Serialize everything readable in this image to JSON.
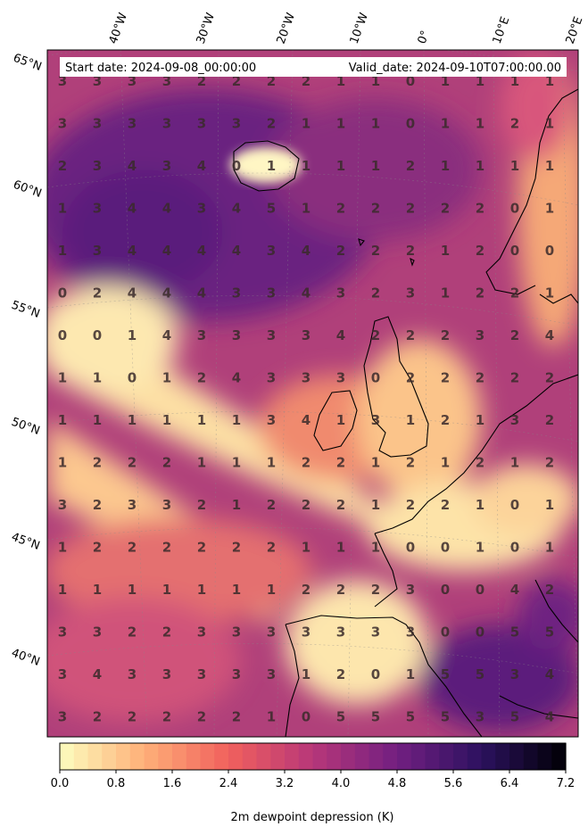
{
  "header": {
    "start_label": "Start date: 2024-09-08_00:00:00",
    "valid_label": "Valid_date: 2024-09-10T07:00:00.00"
  },
  "axes": {
    "lon_labels": [
      "40°W",
      "30°W",
      "20°W",
      "10°W",
      "0°",
      "10°E",
      "20°E"
    ],
    "lat_labels": [
      "65°N",
      "60°N",
      "55°N",
      "50°N",
      "45°N",
      "40°N"
    ]
  },
  "grid_values": [
    [
      3,
      3,
      3,
      3,
      2,
      2,
      2,
      2,
      1,
      1,
      0,
      1,
      1,
      1,
      1
    ],
    [
      3,
      3,
      3,
      3,
      3,
      3,
      2,
      1,
      1,
      1,
      0,
      1,
      1,
      2,
      1
    ],
    [
      2,
      3,
      4,
      3,
      4,
      0,
      1,
      1,
      1,
      1,
      2,
      1,
      1,
      1,
      1
    ],
    [
      1,
      3,
      4,
      4,
      3,
      4,
      5,
      1,
      2,
      2,
      2,
      2,
      2,
      0,
      1
    ],
    [
      1,
      3,
      4,
      4,
      4,
      4,
      3,
      4,
      2,
      2,
      2,
      1,
      2,
      0,
      0
    ],
    [
      0,
      2,
      4,
      4,
      4,
      3,
      3,
      4,
      3,
      2,
      3,
      1,
      2,
      2,
      1
    ],
    [
      0,
      0,
      1,
      4,
      3,
      3,
      3,
      3,
      4,
      2,
      2,
      2,
      3,
      2,
      4
    ],
    [
      1,
      1,
      0,
      1,
      2,
      4,
      3,
      3,
      3,
      0,
      2,
      2,
      2,
      2,
      2
    ],
    [
      1,
      1,
      1,
      1,
      1,
      1,
      3,
      4,
      1,
      3,
      1,
      2,
      1,
      3,
      2
    ],
    [
      1,
      2,
      2,
      2,
      1,
      1,
      1,
      2,
      2,
      1,
      2,
      1,
      2,
      1,
      2
    ],
    [
      3,
      2,
      3,
      3,
      2,
      1,
      2,
      2,
      2,
      1,
      2,
      2,
      1,
      0,
      1
    ],
    [
      1,
      2,
      2,
      2,
      2,
      2,
      2,
      1,
      1,
      1,
      0,
      0,
      1,
      0,
      1
    ],
    [
      1,
      1,
      1,
      1,
      1,
      1,
      1,
      2,
      2,
      2,
      3,
      0,
      0,
      4,
      2
    ],
    [
      3,
      3,
      2,
      2,
      3,
      3,
      3,
      3,
      3,
      3,
      3,
      0,
      0,
      5,
      5
    ],
    [
      3,
      4,
      3,
      3,
      3,
      3,
      3,
      1,
      2,
      0,
      1,
      5,
      5,
      3,
      4
    ],
    [
      3,
      2,
      2,
      2,
      2,
      2,
      1,
      0,
      5,
      5,
      5,
      5,
      3,
      5,
      4
    ]
  ],
  "colorbar": {
    "ticks": [
      "0.0",
      "0.8",
      "1.6",
      "2.4",
      "3.2",
      "4.0",
      "4.8",
      "5.6",
      "6.4",
      "7.2"
    ],
    "min": 0.0,
    "max": 7.2,
    "levels": 36,
    "label": "2m dewpoint depression (K)",
    "colormap": "magma_r",
    "colors": [
      "#fcfdbf",
      "#feb078",
      "#f1605d",
      "#b73779",
      "#721f81",
      "#2c115f",
      "#000004"
    ]
  }
}
